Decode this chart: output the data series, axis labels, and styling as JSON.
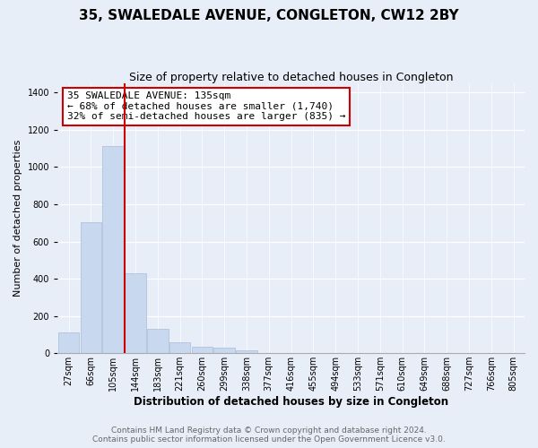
{
  "title": "35, SWALEDALE AVENUE, CONGLETON, CW12 2BY",
  "subtitle": "Size of property relative to detached houses in Congleton",
  "xlabel": "Distribution of detached houses by size in Congleton",
  "ylabel": "Number of detached properties",
  "bar_labels": [
    "27sqm",
    "66sqm",
    "105sqm",
    "144sqm",
    "183sqm",
    "221sqm",
    "260sqm",
    "299sqm",
    "338sqm",
    "377sqm",
    "416sqm",
    "455sqm",
    "494sqm",
    "533sqm",
    "571sqm",
    "610sqm",
    "649sqm",
    "688sqm",
    "727sqm",
    "766sqm",
    "805sqm"
  ],
  "bar_values": [
    110,
    705,
    1115,
    430,
    130,
    57,
    35,
    30,
    13,
    0,
    0,
    0,
    0,
    0,
    0,
    0,
    0,
    0,
    0,
    0,
    0
  ],
  "bar_color": "#c8d8ee",
  "bar_edge_color": "#a8bcd8",
  "vline_x": 3.0,
  "vline_color": "#cc0000",
  "ylim": [
    0,
    1450
  ],
  "yticks": [
    0,
    200,
    400,
    600,
    800,
    1000,
    1200,
    1400
  ],
  "annotation_title": "35 SWALEDALE AVENUE: 135sqm",
  "annotation_line1": "← 68% of detached houses are smaller (1,740)",
  "annotation_line2": "32% of semi-detached houses are larger (835) →",
  "annotation_box_color": "#ffffff",
  "annotation_box_edge": "#cc0000",
  "footer_line1": "Contains HM Land Registry data © Crown copyright and database right 2024.",
  "footer_line2": "Contains public sector information licensed under the Open Government Licence v3.0.",
  "background_color": "#e8eef8",
  "plot_bg_color": "#e8eef8",
  "grid_color": "#ffffff",
  "title_fontsize": 11,
  "subtitle_fontsize": 9,
  "xlabel_fontsize": 8.5,
  "ylabel_fontsize": 8,
  "tick_fontsize": 7,
  "footer_fontsize": 6.5,
  "annotation_fontsize": 8
}
